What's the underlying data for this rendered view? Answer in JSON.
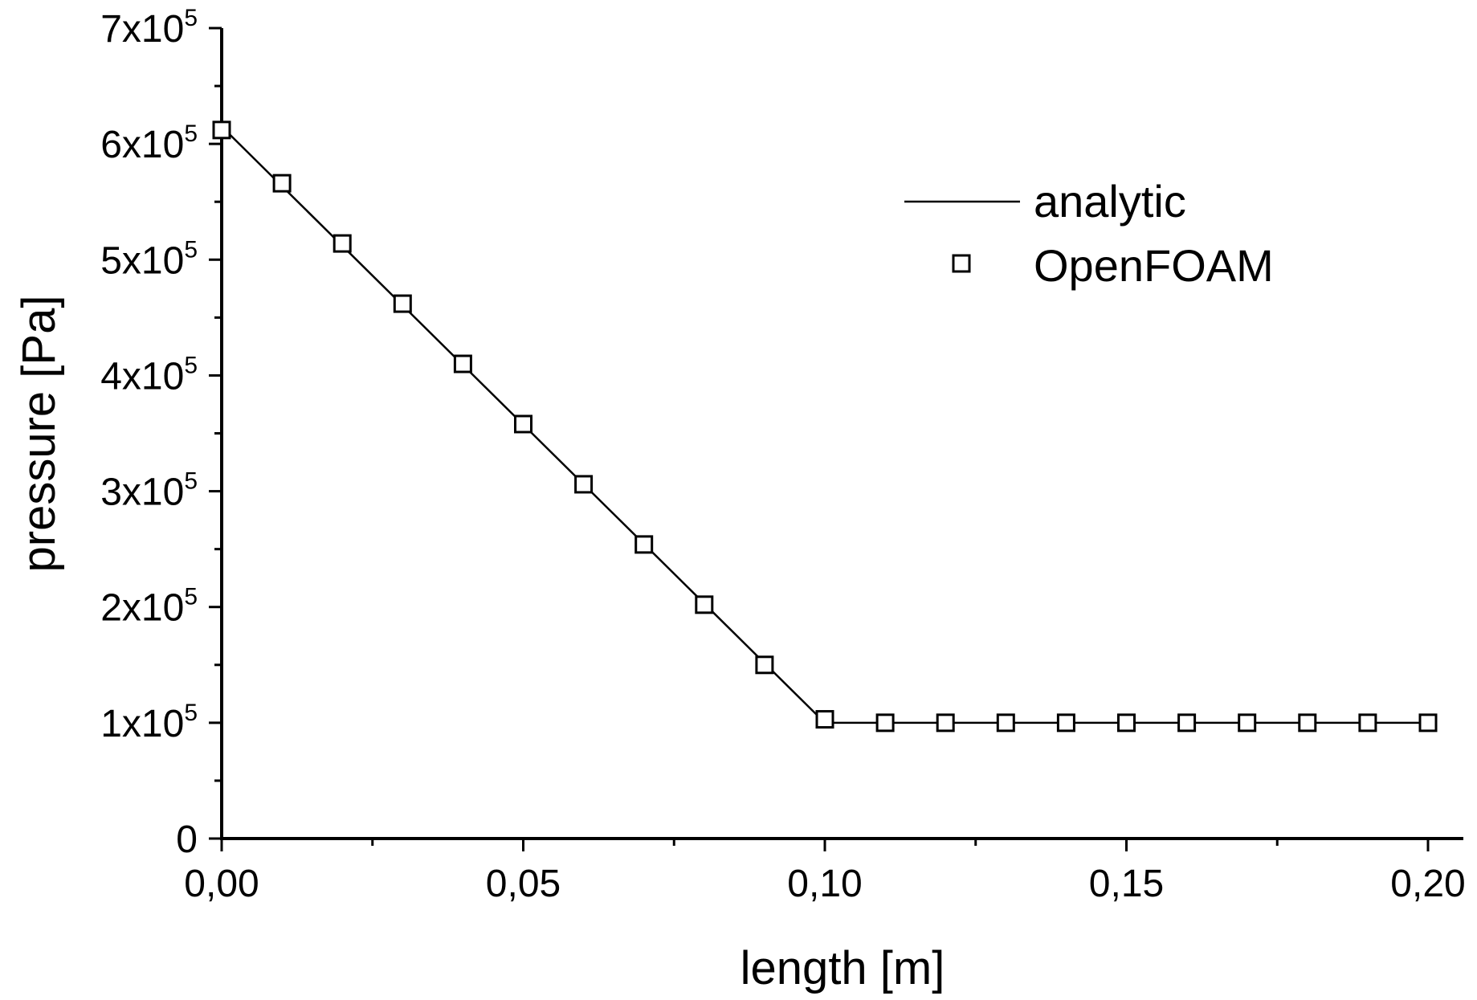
{
  "chart_data": {
    "type": "line",
    "xlabel": "length [m]",
    "ylabel": "pressure [Pa]",
    "xlim": [
      0,
      0.2
    ],
    "ylim": [
      0,
      700000
    ],
    "x_ticks": [
      {
        "value": 0.0,
        "label": "0,00"
      },
      {
        "value": 0.05,
        "label": "0,05"
      },
      {
        "value": 0.1,
        "label": "0,10"
      },
      {
        "value": 0.15,
        "label": "0,15"
      },
      {
        "value": 0.2,
        "label": "0,20"
      }
    ],
    "y_ticks": [
      {
        "value": 0,
        "label": "0",
        "exp": ""
      },
      {
        "value": 100000,
        "label": "1x10",
        "exp": "5"
      },
      {
        "value": 200000,
        "label": "2x10",
        "exp": "5"
      },
      {
        "value": 300000,
        "label": "3x10",
        "exp": "5"
      },
      {
        "value": 400000,
        "label": "4x10",
        "exp": "5"
      },
      {
        "value": 500000,
        "label": "5x10",
        "exp": "5"
      },
      {
        "value": 600000,
        "label": "6x10",
        "exp": "5"
      },
      {
        "value": 700000,
        "label": "7x10",
        "exp": "5"
      }
    ],
    "grid": false,
    "legend_position": "top-right",
    "series": [
      {
        "name": "analytic",
        "style": "line",
        "color": "#000000",
        "x": [
          0.0,
          0.1,
          0.2
        ],
        "y": [
          615000,
          100000,
          100000
        ]
      },
      {
        "name": "OpenFOAM",
        "style": "open-square-markers",
        "color": "#000000",
        "x": [
          0.0,
          0.01,
          0.02,
          0.03,
          0.04,
          0.05,
          0.06,
          0.07,
          0.08,
          0.09,
          0.1,
          0.11,
          0.12,
          0.13,
          0.14,
          0.15,
          0.16,
          0.17,
          0.18,
          0.19,
          0.2
        ],
        "y": [
          612000,
          566000,
          514000,
          462000,
          410000,
          358000,
          306000,
          254000,
          202000,
          150000,
          103000,
          100000,
          100000,
          100000,
          100000,
          100000,
          100000,
          100000,
          100000,
          100000,
          100000
        ]
      }
    ]
  }
}
